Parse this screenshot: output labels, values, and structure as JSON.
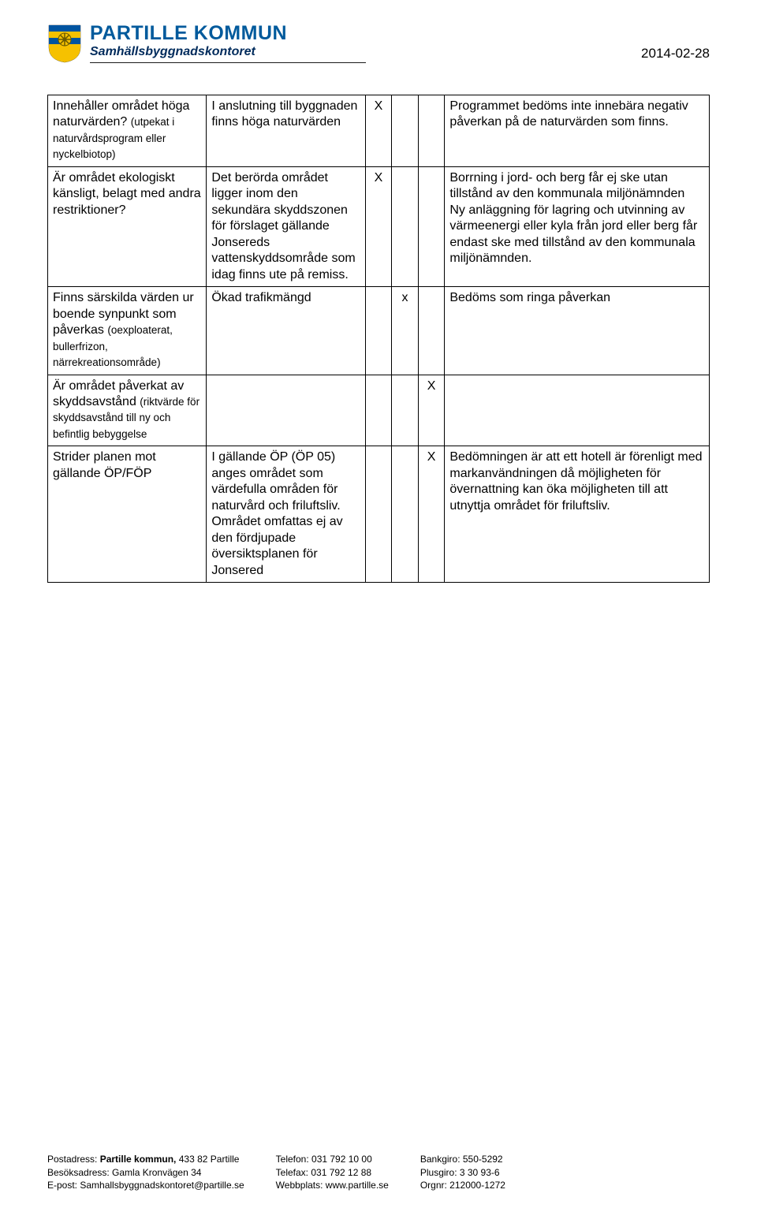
{
  "header": {
    "org_name": "PARTILLE KOMMUN",
    "department": "Samhällsbyggnadskontoret",
    "date": "2014-02-28"
  },
  "crest": {
    "stripes": [
      "#0054a0",
      "#f6c100",
      "#0054a0",
      "#f6c100"
    ],
    "wheel_fill": "#f6c100",
    "wheel_stroke": "#6a5a00"
  },
  "table": {
    "rows": [
      {
        "question_main": "Innehåller området höga naturvärden?",
        "question_sub": "(utpekat i naturvårdsprogram eller nyckelbiotop)",
        "desc": "I anslutning till byggnaden finns höga naturvärden",
        "m1": "X",
        "m2": "",
        "m3": "",
        "comment": "Programmet bedöms inte innebära negativ påverkan på de naturvärden som finns."
      },
      {
        "question_main": "Är området ekologiskt känsligt, belagt med andra restriktioner?",
        "question_sub": "",
        "desc": "Det berörda området ligger inom den sekundära skyddszonen för förslaget gällande Jonsereds vattenskyddsområde som idag finns ute på remiss.",
        "m1": "X",
        "m2": "",
        "m3": "",
        "comment": "Borrning i jord- och berg får ej ske utan tillstånd av den kommunala miljönämnden\nNy anläggning för lagring och utvinning av värmeenergi eller kyla från jord eller berg får endast ske med tillstånd av den kommunala miljönämnden."
      },
      {
        "question_main": "Finns särskilda värden ur boende synpunkt som påverkas",
        "question_sub": "(oexploaterat, bullerfrizon, närrekreationsområde)",
        "desc": "Ökad trafikmängd",
        "m1": "",
        "m2": "x",
        "m3": "",
        "comment": "Bedöms som ringa påverkan"
      },
      {
        "question_main": "Är området påverkat av skyddsavstånd",
        "question_sub": "(riktvärde för skyddsavstånd till ny och befintlig bebyggelse",
        "desc": "",
        "m1": "",
        "m2": "",
        "m3": "X",
        "comment": ""
      },
      {
        "question_main": "Strider planen mot gällande ÖP/FÖP",
        "question_sub": "",
        "desc": "I gällande ÖP (ÖP 05) anges området som värdefulla områden för naturvård och friluftsliv.\nOmrådet omfattas ej av den fördjupade översiktsplanen för Jonsered",
        "m1": "",
        "m2": "",
        "m3": "X",
        "comment": "Bedömningen är att ett hotell är förenligt med markanvändningen då möjligheten för övernattning kan öka möjligheten till att utnyttja området för friluftsliv."
      }
    ]
  },
  "footer": {
    "col1": {
      "l1_label": "Postadress: ",
      "l1_bold": "Partille kommun, ",
      "l1_rest": "433 82  Partille",
      "l2": "Besöksadress: Gamla Kronvägen 34",
      "l3": "E-post: Samhallsbyggnadskontoret@partille.se"
    },
    "col2": {
      "l1": "Telefon: 031 792 10 00",
      "l2": "Telefax: 031 792 12 88",
      "l3": "Webbplats: www.partille.se"
    },
    "col3": {
      "l1": "Bankgiro: 550-5292",
      "l2": "Plusgiro: 3 30 93-6",
      "l3": "Orgnr: 212000-1272"
    }
  }
}
